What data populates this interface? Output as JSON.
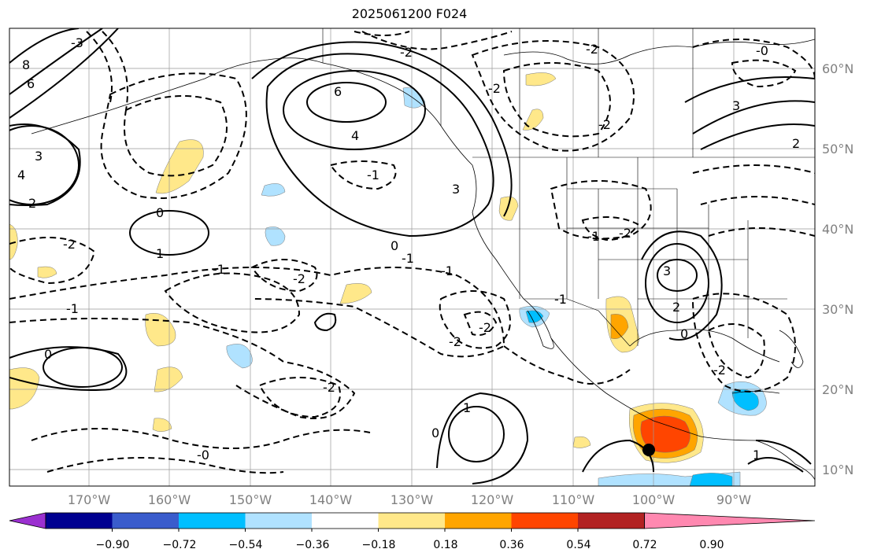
{
  "title": "2025061200 F024",
  "lat_labels": [
    "60°N",
    "50°N",
    "40°N",
    "30°N",
    "20°N",
    "10°N"
  ],
  "lon_labels": [
    "170°W",
    "160°W",
    "150°W",
    "140°W",
    "130°W",
    "120°W",
    "110°W",
    "100°W",
    "90°W"
  ],
  "colorbar": {
    "ticks": [
      "−0.90",
      "−0.72",
      "−0.54",
      "−0.36",
      "−0.18",
      "0.18",
      "0.36",
      "0.54",
      "0.72",
      "0.90"
    ],
    "colors": [
      "#9b30d0",
      "#000090",
      "#3a5ccc",
      "#00bfff",
      "#b0e2ff",
      "#ffffff",
      "#ffe88a",
      "#ffa500",
      "#ff4500",
      "#b22222",
      "#ff88b0"
    ]
  },
  "contour_labels": {
    "positive": [
      "8",
      "6",
      "6",
      "4",
      "4",
      "3",
      "3",
      "3",
      "2",
      "2",
      "1",
      "1",
      "1",
      "0",
      "0",
      "0",
      "0",
      "0",
      "2",
      "3"
    ],
    "negative": [
      "-3",
      "-2",
      "-2",
      "-2",
      "-2",
      "-2",
      "-2",
      "-2",
      "-1",
      "-1",
      "-1",
      "-1",
      "-1",
      "-2",
      "-2",
      "-2",
      "-1",
      "-1",
      "-2",
      "-0",
      "-0"
    ]
  }
}
